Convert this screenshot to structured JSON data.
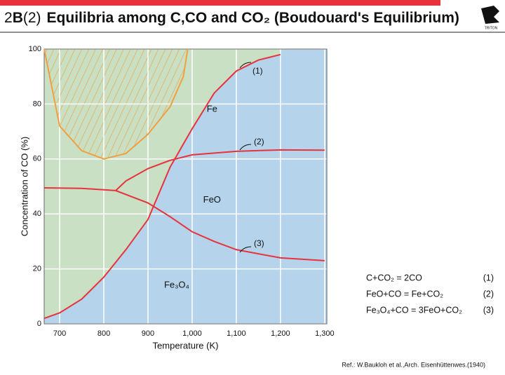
{
  "header": {
    "number": "2",
    "letter": "B",
    "section": "(2)",
    "title": "Equilibria among C,CO and CO₂ (Boudouard's Equilibrium)",
    "logo": "TRITON"
  },
  "chart_data": {
    "type": "line",
    "xlabel": "Temperature (K)",
    "ylabel": "Concentration of CO (%)",
    "xlim": [
      665,
      1305
    ],
    "ylim": [
      0,
      100
    ],
    "xticks": [
      700,
      800,
      900,
      {
        "value": 1000,
        "label": "1,000"
      },
      {
        "value": 1100,
        "label": "1,100"
      },
      {
        "value": 1200,
        "label": "1,200"
      },
      {
        "value": 1300,
        "label": "1,300"
      }
    ],
    "yticks": [
      0,
      20,
      40,
      60,
      80,
      100
    ],
    "grid": true,
    "series": [
      {
        "name": "(1)",
        "color": "#e8323c",
        "x": [
          665,
          700,
          750,
          800,
          850,
          900,
          950,
          1000,
          1050,
          1100,
          1150,
          1200
        ],
        "values": [
          2,
          4,
          9,
          17,
          27,
          38,
          57,
          71,
          84,
          92,
          96,
          98
        ]
      },
      {
        "name": "(2)",
        "color": "#e8323c",
        "x": [
          827,
          850,
          900,
          950,
          1000,
          1100,
          1200,
          1300
        ],
        "values": [
          48.5,
          52,
          56.5,
          59.5,
          61.5,
          62.8,
          63.3,
          63.2
        ]
      },
      {
        "name": "(3)",
        "color": "#e8323c",
        "x": [
          665,
          750,
          827,
          900,
          950,
          1000,
          1050,
          1100,
          1200,
          1300
        ],
        "values": [
          49.5,
          49.3,
          48.5,
          44,
          39,
          33.5,
          30,
          27,
          24,
          23
        ]
      },
      {
        "color": "#f0a040",
        "x": [
          665,
          700,
          750,
          800,
          850,
          900,
          950,
          980,
          990
        ],
        "values": [
          100,
          72,
          63,
          60,
          62,
          69,
          79,
          90,
          100
        ]
      }
    ],
    "regions": [
      {
        "label": "Fe",
        "x": 1045,
        "y": 78
      },
      {
        "label": "FeO",
        "x": 1045,
        "y": 45
      },
      {
        "label": "Fe₃O₄",
        "x": 965,
        "y": 14
      }
    ],
    "equations": [
      {
        "text": "C+CO₂ = 2CO",
        "label": "(1)"
      },
      {
        "text": "FeO+CO = Fe+CO₂",
        "label": "(2)"
      },
      {
        "text": "Fe₃O₄+CO = 3FeO+CO₂",
        "label": "(3)"
      }
    ],
    "reference": "Ref.: W.Baukloh et al.,Arch. Eisenhüttenwes.(1940)"
  }
}
